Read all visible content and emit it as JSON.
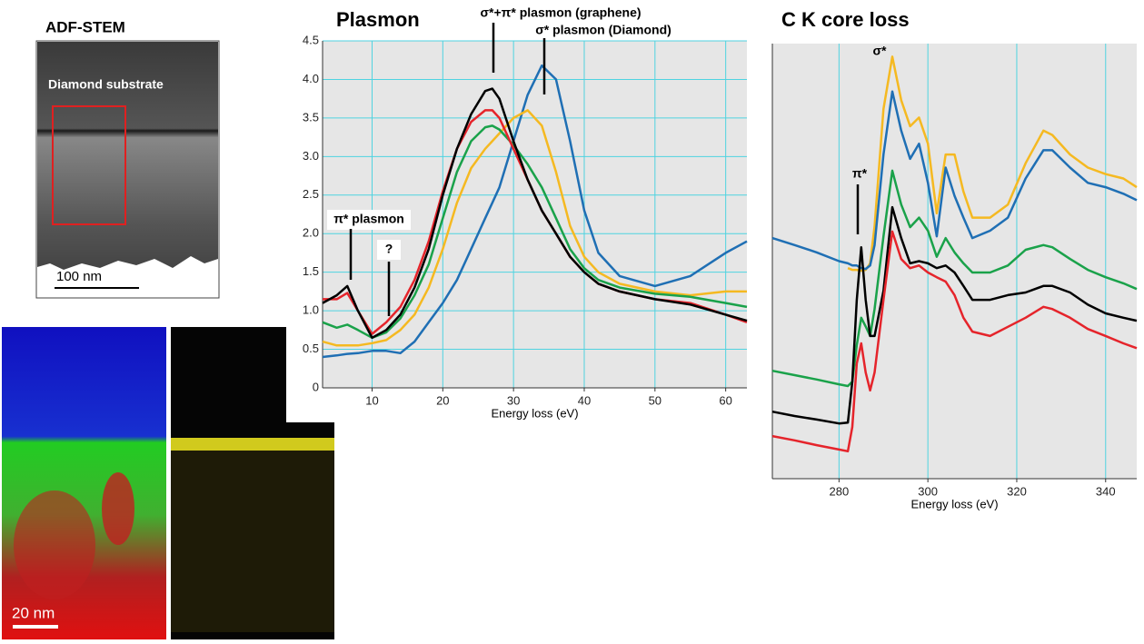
{
  "images": {
    "adf_title": "ADF-STEM",
    "adf_label": "Diamond substrate",
    "adf_scale": "100 nm",
    "map_scale": "20 nm"
  },
  "chart_data": [
    {
      "type": "line",
      "title": "Plasmon",
      "xlabel": "Energy loss (eV)",
      "annotations": [
        "σ*+π* plasmon (graphene)",
        "σ* plasmon (Diamond)",
        "π* plasmon",
        "?"
      ],
      "xlim": [
        3,
        63
      ],
      "xticks": [
        10,
        20,
        30,
        40,
        50,
        60
      ],
      "ylim": [
        0,
        4.5
      ],
      "yticks": [
        0,
        0.5,
        {
          "value": 1,
          "label": "1.0"
        },
        1.5,
        {
          "value": 2,
          "label": "2.0"
        },
        2.5,
        {
          "value": 3,
          "label": "3.0"
        },
        3.5,
        {
          "value": 4,
          "label": "4.0"
        },
        4.5
      ],
      "grid": true,
      "background": "#e6e6e6",
      "grid_color": "#4fd3e0",
      "x": [
        3,
        5,
        6.5,
        8,
        10,
        12,
        14,
        16,
        18,
        20,
        22,
        24,
        26,
        27,
        28,
        30,
        32,
        34,
        36,
        38,
        40,
        42,
        45,
        50,
        55,
        60,
        63
      ],
      "series": [
        {
          "color": "#1f6fb4",
          "values": [
            0.4,
            0.42,
            0.44,
            0.45,
            0.48,
            0.48,
            0.45,
            0.6,
            0.85,
            1.1,
            1.4,
            1.8,
            2.2,
            2.4,
            2.6,
            3.2,
            3.8,
            4.18,
            4.0,
            3.2,
            2.3,
            1.75,
            1.45,
            1.32,
            1.45,
            1.75,
            1.9
          ]
        },
        {
          "color": "#f5b921",
          "values": [
            0.6,
            0.55,
            0.55,
            0.55,
            0.58,
            0.62,
            0.75,
            0.95,
            1.3,
            1.8,
            2.4,
            2.85,
            3.1,
            3.2,
            3.3,
            3.5,
            3.6,
            3.4,
            2.8,
            2.1,
            1.7,
            1.5,
            1.35,
            1.25,
            1.2,
            1.25,
            1.25
          ]
        },
        {
          "color": "#1aa24a",
          "values": [
            0.85,
            0.78,
            0.82,
            0.75,
            0.65,
            0.72,
            0.9,
            1.2,
            1.6,
            2.2,
            2.8,
            3.2,
            3.38,
            3.4,
            3.35,
            3.15,
            2.9,
            2.6,
            2.2,
            1.8,
            1.55,
            1.4,
            1.3,
            1.22,
            1.18,
            1.1,
            1.05
          ]
        },
        {
          "color": "#e5242b",
          "values": [
            1.15,
            1.15,
            1.23,
            1.0,
            0.7,
            0.85,
            1.05,
            1.4,
            1.9,
            2.55,
            3.1,
            3.45,
            3.6,
            3.6,
            3.5,
            3.1,
            2.7,
            2.3,
            2.0,
            1.7,
            1.5,
            1.35,
            1.25,
            1.15,
            1.1,
            0.95,
            0.85
          ]
        },
        {
          "color": "#000000",
          "values": [
            1.1,
            1.2,
            1.32,
            1.0,
            0.65,
            0.75,
            0.95,
            1.3,
            1.8,
            2.5,
            3.1,
            3.55,
            3.85,
            3.88,
            3.75,
            3.2,
            2.7,
            2.3,
            2.0,
            1.7,
            1.5,
            1.35,
            1.25,
            1.15,
            1.08,
            0.95,
            0.87
          ]
        }
      ]
    },
    {
      "type": "line",
      "title": "C K core loss",
      "xlabel": "Energy loss (eV)",
      "annotations": [
        "σ*",
        "π*"
      ],
      "xlim": [
        265,
        347
      ],
      "xticks": [
        280,
        300,
        320,
        340
      ],
      "ylim": [
        0,
        10
      ],
      "grid": true,
      "background": "#e6e6e6",
      "grid_color": "#4fd3e0",
      "x": [
        265,
        270,
        275,
        280,
        282,
        283,
        284,
        285,
        286,
        287,
        288,
        290,
        292,
        294,
        296,
        298,
        300,
        302,
        304,
        306,
        308,
        310,
        314,
        318,
        322,
        326,
        328,
        332,
        336,
        340,
        344,
        347
      ],
      "series": [
        {
          "color": "#f5b921",
          "values": [
            null,
            null,
            null,
            null,
            4.84,
            4.8,
            4.8,
            4.78,
            4.8,
            4.95,
            5.8,
            8.5,
            9.7,
            8.7,
            8.1,
            8.3,
            7.7,
            6.1,
            7.45,
            7.45,
            6.6,
            6.0,
            6.0,
            6.3,
            7.25,
            8.0,
            7.9,
            7.45,
            7.15,
            7.0,
            6.9,
            6.7
          ]
        },
        {
          "color": "#1f6fb4",
          "values": [
            5.53,
            5.37,
            5.2,
            5.0,
            4.95,
            4.9,
            4.9,
            4.84,
            4.82,
            4.9,
            5.37,
            7.45,
            8.9,
            8.0,
            7.35,
            7.7,
            6.8,
            5.57,
            7.15,
            6.5,
            6.0,
            5.53,
            5.7,
            6.0,
            6.9,
            7.55,
            7.55,
            7.15,
            6.8,
            6.7,
            6.55,
            6.4
          ]
        },
        {
          "color": "#1aa24a",
          "values": [
            2.48,
            2.38,
            2.28,
            2.17,
            2.13,
            2.23,
            3.07,
            3.7,
            3.5,
            3.28,
            3.9,
            5.57,
            7.08,
            6.3,
            5.78,
            6.0,
            5.7,
            5.1,
            5.53,
            5.2,
            4.95,
            4.74,
            4.74,
            4.9,
            5.26,
            5.37,
            5.32,
            5.05,
            4.8,
            4.63,
            4.49,
            4.36
          ]
        },
        {
          "color": "#000000",
          "values": [
            1.54,
            1.44,
            1.36,
            1.27,
            1.29,
            2.23,
            4.11,
            5.32,
            4.11,
            3.28,
            3.28,
            4.32,
            6.24,
            5.53,
            4.95,
            5.0,
            4.95,
            4.84,
            4.9,
            4.74,
            4.43,
            4.11,
            4.11,
            4.22,
            4.28,
            4.43,
            4.43,
            4.28,
            4.0,
            3.8,
            3.7,
            3.63
          ]
        },
        {
          "color": "#e5242b",
          "values": [
            0.98,
            0.88,
            0.77,
            0.67,
            0.63,
            1.19,
            2.65,
            3.11,
            2.44,
            2.03,
            2.44,
            4.11,
            5.68,
            5.05,
            4.84,
            4.9,
            4.74,
            4.63,
            4.53,
            4.22,
            3.7,
            3.38,
            3.28,
            3.49,
            3.7,
            3.95,
            3.9,
            3.7,
            3.44,
            3.28,
            3.11,
            3.0
          ]
        }
      ]
    }
  ]
}
